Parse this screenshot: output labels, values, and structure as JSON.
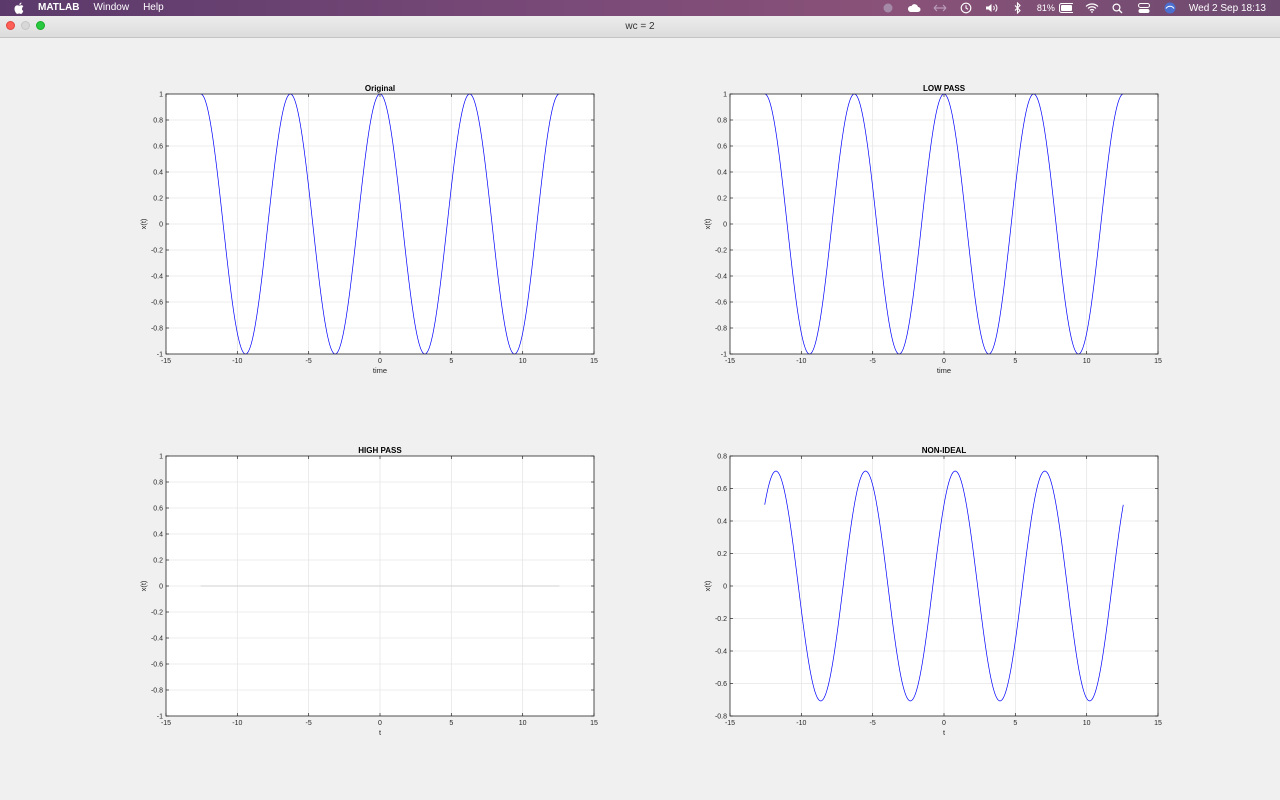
{
  "menubar": {
    "app_name": "MATLAB",
    "items": [
      "Window",
      "Help"
    ],
    "battery": "81%",
    "datetime": "Wed 2 Sep  18:13"
  },
  "window": {
    "title": "wc = 2"
  },
  "chart_data": [
    {
      "type": "line",
      "title": "Original",
      "xlabel": "time",
      "ylabel": "x(t)",
      "xlim": [
        -15,
        15
      ],
      "ylim": [
        -1,
        1
      ],
      "xticks": [
        -15,
        -10,
        -5,
        0,
        5,
        10,
        15
      ],
      "yticks": [
        -1,
        -0.8,
        -0.6,
        -0.4,
        -0.2,
        0,
        0.2,
        0.4,
        0.6,
        0.8,
        1
      ],
      "grid": true,
      "series": [
        {
          "function": "cos(t)",
          "t_range": [
            -12.566,
            12.566
          ],
          "color": "#0000ff"
        }
      ]
    },
    {
      "type": "line",
      "title": "LOW PASS",
      "xlabel": "time",
      "ylabel": "x(t)",
      "xlim": [
        -15,
        15
      ],
      "ylim": [
        -1,
        1
      ],
      "xticks": [
        -15,
        -10,
        -5,
        0,
        5,
        10,
        15
      ],
      "yticks": [
        -1,
        -0.8,
        -0.6,
        -0.4,
        -0.2,
        0,
        0.2,
        0.4,
        0.6,
        0.8,
        1
      ],
      "grid": true,
      "series": [
        {
          "function": "cos(t)",
          "t_range": [
            -12.566,
            12.566
          ],
          "color": "#0000ff"
        }
      ]
    },
    {
      "type": "line",
      "title": "HIGH PASS",
      "xlabel": "t",
      "ylabel": "x(t)",
      "xlim": [
        -15,
        15
      ],
      "ylim": [
        -1,
        1
      ],
      "xticks": [
        -15,
        -10,
        -5,
        0,
        5,
        10,
        15
      ],
      "yticks": [
        -1,
        -0.8,
        -0.6,
        -0.4,
        -0.2,
        0,
        0.2,
        0.4,
        0.6,
        0.8,
        1
      ],
      "grid": true,
      "series": [
        {
          "function": "0",
          "t_range": [
            -12.566,
            12.566
          ],
          "color": "#c8c8c8"
        }
      ]
    },
    {
      "type": "line",
      "title": "NON-IDEAL",
      "xlabel": "t",
      "ylabel": "x(t)",
      "xlim": [
        -15,
        15
      ],
      "ylim": [
        -0.8,
        0.8
      ],
      "xticks": [
        -15,
        -10,
        -5,
        0,
        5,
        10,
        15
      ],
      "yticks": [
        -0.8,
        -0.6,
        -0.4,
        -0.2,
        0,
        0.2,
        0.4,
        0.6,
        0.8
      ],
      "grid": true,
      "series": [
        {
          "function": "0.7071*cos(t-0.7854)",
          "t_range": [
            -12.566,
            12.566
          ],
          "color": "#0000ff"
        }
      ]
    }
  ]
}
